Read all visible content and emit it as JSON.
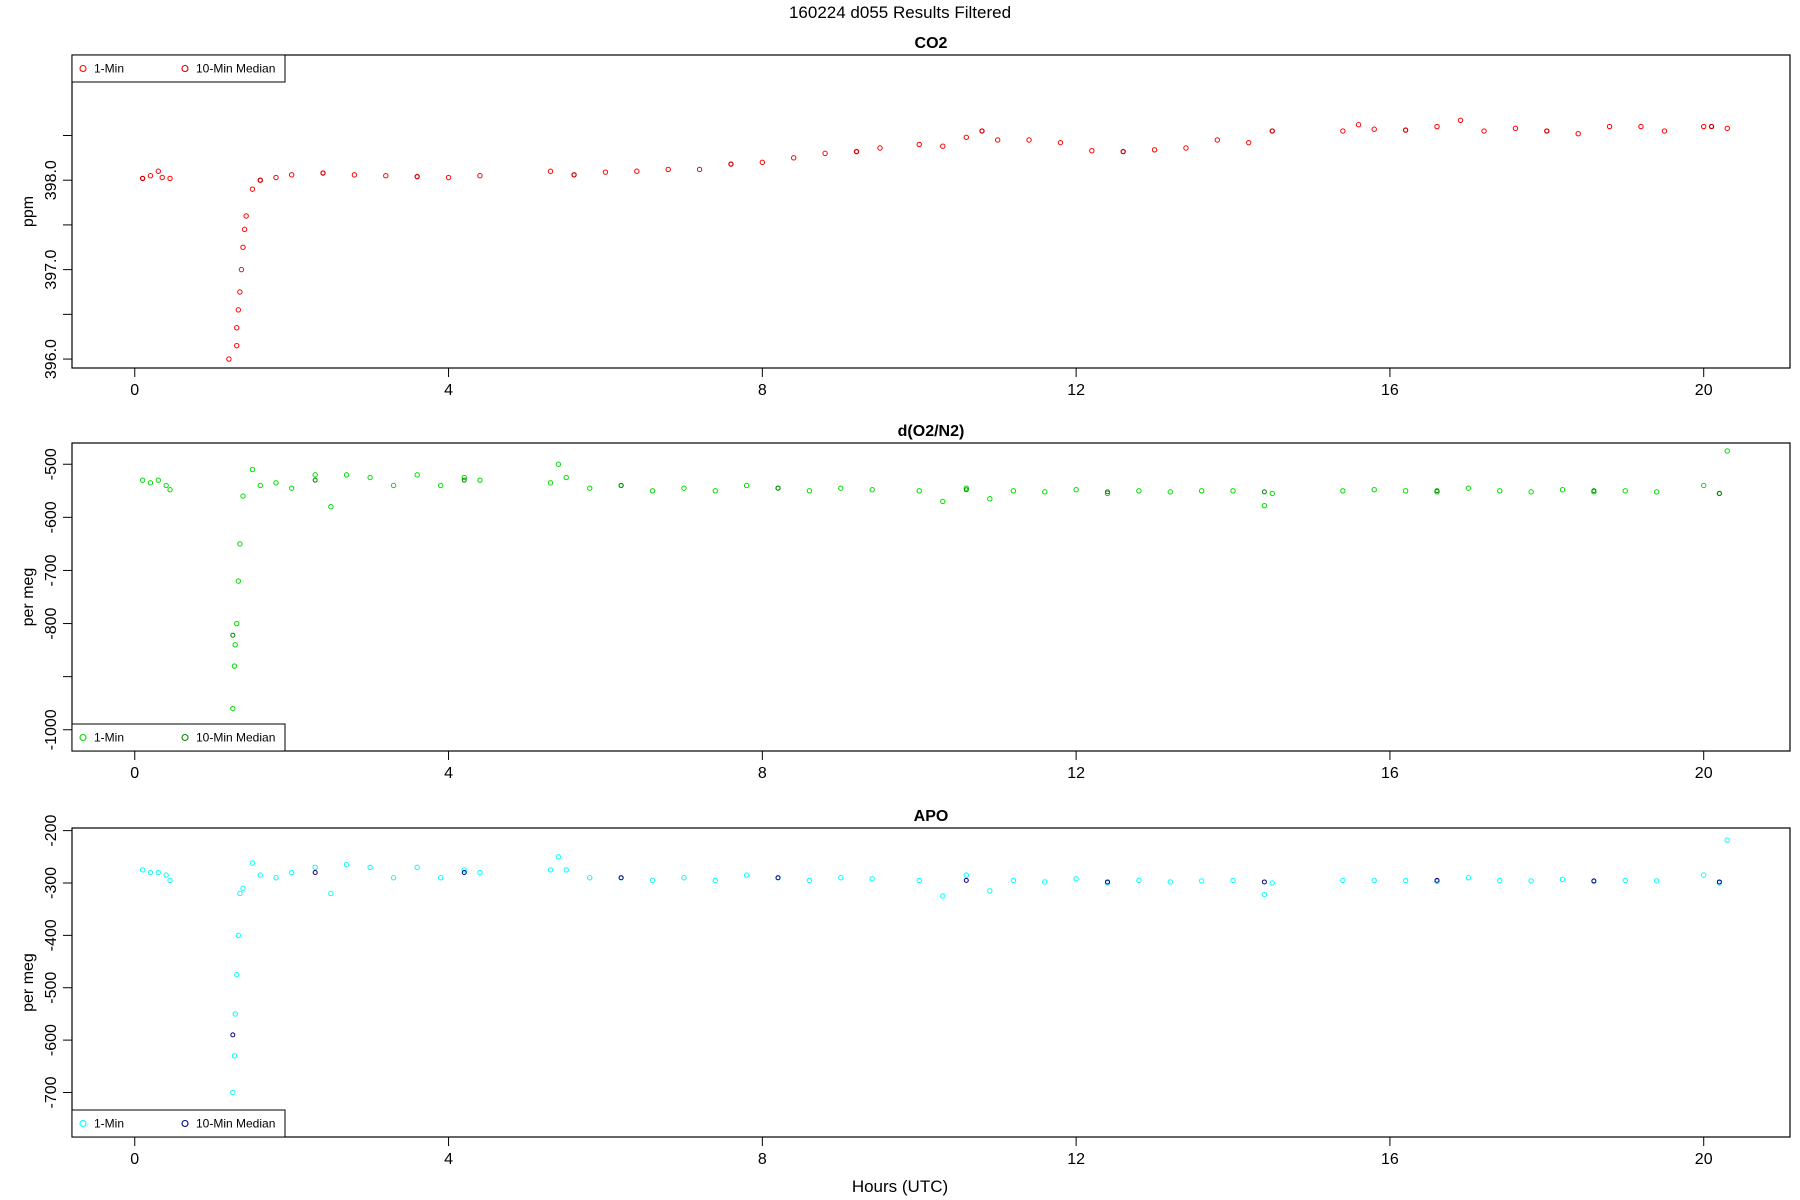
{
  "figure_title": "160224   d055   Results Filtered",
  "xlabel": "Hours (UTC)",
  "colors": {
    "co2": "#ff0000",
    "o2": "#00dd00",
    "apo": "#00ffff",
    "axis": "#000000"
  },
  "legend_placements": [
    "top-left",
    "bottom-left",
    "bottom-left"
  ],
  "chart_data": [
    {
      "type": "scatter",
      "title": "CO2",
      "ylabel": "ppm",
      "xlim": [
        -0.8,
        21.1
      ],
      "ylim": [
        395.9,
        399.4
      ],
      "xticks": [
        0,
        4,
        8,
        12,
        16,
        20
      ],
      "yticks": [
        396.0,
        396.5,
        397.0,
        397.5,
        398.0,
        398.5
      ],
      "ytick_labels": [
        "396.0",
        "",
        "397.0",
        "",
        "398.0",
        ""
      ],
      "legend": {
        "placement": "top-left",
        "entries": [
          "1-Min",
          "10-Min Median"
        ]
      },
      "series": [
        {
          "name": "1-Min",
          "color": "#ff0000",
          "x": [
            0.1,
            0.2,
            0.3,
            0.35,
            0.45,
            1.2,
            1.3,
            1.3,
            1.32,
            1.34,
            1.36,
            1.38,
            1.4,
            1.42,
            1.5,
            1.6,
            1.8,
            2.0,
            2.4,
            2.8,
            3.2,
            3.6,
            4.0,
            4.4,
            5.3,
            5.6,
            6.0,
            6.4,
            6.8,
            7.2,
            7.6,
            8.0,
            8.4,
            8.8,
            9.2,
            9.5,
            10.0,
            10.3,
            10.6,
            10.8,
            11.0,
            11.4,
            11.8,
            12.2,
            12.6,
            13.0,
            13.4,
            13.8,
            14.2,
            14.5,
            15.4,
            15.6,
            15.8,
            16.2,
            16.6,
            16.9,
            17.2,
            17.6,
            18.0,
            18.4,
            18.8,
            19.2,
            19.5,
            20.0,
            20.1,
            20.3
          ],
          "y": [
            398.02,
            398.05,
            398.1,
            398.03,
            398.02,
            396.0,
            396.15,
            396.35,
            396.55,
            396.75,
            397.0,
            397.25,
            397.45,
            397.6,
            397.9,
            398.0,
            398.03,
            398.06,
            398.08,
            398.06,
            398.05,
            398.04,
            398.03,
            398.05,
            398.1,
            398.06,
            398.09,
            398.1,
            398.12,
            398.12,
            398.18,
            398.2,
            398.25,
            398.3,
            398.32,
            398.36,
            398.4,
            398.38,
            398.48,
            398.55,
            398.45,
            398.45,
            398.42,
            398.33,
            398.32,
            398.34,
            398.36,
            398.45,
            398.42,
            398.55,
            398.55,
            398.62,
            398.57,
            398.56,
            398.6,
            398.67,
            398.55,
            398.58,
            398.55,
            398.52,
            398.6,
            398.6,
            398.55,
            398.6,
            398.6,
            398.58
          ]
        },
        {
          "name": "10-Min Median",
          "color": "#cc0000",
          "x": [
            0.1,
            1.6,
            2.4,
            3.6,
            5.6,
            7.6,
            9.2,
            10.8,
            12.6,
            14.5,
            16.2,
            18.0,
            20.1
          ],
          "y": [
            398.02,
            398.0,
            398.08,
            398.04,
            398.06,
            398.18,
            398.32,
            398.55,
            398.32,
            398.55,
            398.56,
            398.55,
            398.6
          ]
        }
      ]
    },
    {
      "type": "scatter",
      "title": "d(O2/N2)",
      "ylabel": "per meg",
      "xlim": [
        -0.8,
        21.1
      ],
      "ylim": [
        -1040,
        -460
      ],
      "xticks": [
        0,
        4,
        8,
        12,
        16,
        20
      ],
      "yticks": [
        -1000,
        -900,
        -800,
        -700,
        -600,
        -500
      ],
      "ytick_labels": [
        "-1000",
        "",
        "-800",
        "-700",
        "-600",
        "-500"
      ],
      "legend": {
        "placement": "bottom-left",
        "entries": [
          "1-Min",
          "10-Min Median"
        ]
      },
      "series": [
        {
          "name": "1-Min",
          "color": "#00dd00",
          "x": [
            0.1,
            0.2,
            0.3,
            0.4,
            0.45,
            1.25,
            1.27,
            1.28,
            1.3,
            1.32,
            1.34,
            1.38,
            1.5,
            1.6,
            1.8,
            2.0,
            2.3,
            2.5,
            2.7,
            3.0,
            3.3,
            3.6,
            3.9,
            4.2,
            4.4,
            5.3,
            5.4,
            5.5,
            5.8,
            6.2,
            6.6,
            7.0,
            7.4,
            7.8,
            8.2,
            8.6,
            9.0,
            9.4,
            10.0,
            10.3,
            10.6,
            10.9,
            11.2,
            11.6,
            12.0,
            12.4,
            12.8,
            13.2,
            13.6,
            14.0,
            14.4,
            14.5,
            15.4,
            15.8,
            16.2,
            16.6,
            17.0,
            17.4,
            17.8,
            18.2,
            18.6,
            19.0,
            19.4,
            20.0,
            20.2,
            20.3
          ],
          "y": [
            -530,
            -535,
            -530,
            -540,
            -548,
            -960,
            -880,
            -840,
            -800,
            -720,
            -650,
            -560,
            -510,
            -540,
            -535,
            -545,
            -520,
            -580,
            -520,
            -525,
            -540,
            -520,
            -540,
            -525,
            -530,
            -535,
            -500,
            -525,
            -545,
            -540,
            -550,
            -545,
            -550,
            -540,
            -545,
            -550,
            -545,
            -548,
            -550,
            -570,
            -545,
            -565,
            -550,
            -552,
            -548,
            -555,
            -550,
            -552,
            -550,
            -550,
            -578,
            -555,
            -550,
            -548,
            -550,
            -552,
            -545,
            -550,
            -552,
            -548,
            -552,
            -550,
            -552,
            -540,
            -555,
            -475
          ]
        },
        {
          "name": "10-Min Median",
          "color": "#008800",
          "x": [
            1.25,
            2.3,
            4.2,
            6.2,
            8.2,
            10.6,
            12.4,
            14.4,
            16.6,
            18.6,
            20.2
          ],
          "y": [
            -822,
            -530,
            -530,
            -540,
            -545,
            -548,
            -552,
            -552,
            -550,
            -550,
            -555
          ]
        }
      ]
    },
    {
      "type": "scatter",
      "title": "APO",
      "ylabel": "per meg",
      "xlim": [
        -0.8,
        21.1
      ],
      "ylim": [
        -785,
        -195
      ],
      "xticks": [
        0,
        4,
        8,
        12,
        16,
        20
      ],
      "yticks": [
        -700,
        -600,
        -500,
        -400,
        -300,
        -200
      ],
      "ytick_labels": [
        "-700",
        "-600",
        "-500",
        "-400",
        "-300",
        "-200"
      ],
      "legend": {
        "placement": "bottom-left",
        "entries": [
          "1-Min",
          "10-Min Median"
        ]
      },
      "series": [
        {
          "name": "1-Min",
          "color": "#00ffff",
          "x": [
            0.1,
            0.2,
            0.3,
            0.4,
            0.45,
            1.25,
            1.27,
            1.28,
            1.3,
            1.32,
            1.34,
            1.38,
            1.5,
            1.6,
            1.8,
            2.0,
            2.3,
            2.5,
            2.7,
            3.0,
            3.3,
            3.6,
            3.9,
            4.2,
            4.4,
            5.3,
            5.4,
            5.5,
            5.8,
            6.2,
            6.6,
            7.0,
            7.4,
            7.8,
            8.2,
            8.6,
            9.0,
            9.4,
            10.0,
            10.3,
            10.6,
            10.9,
            11.2,
            11.6,
            12.0,
            12.4,
            12.8,
            13.2,
            13.6,
            14.0,
            14.4,
            14.5,
            15.4,
            15.8,
            16.2,
            16.6,
            17.0,
            17.4,
            17.8,
            18.2,
            18.6,
            19.0,
            19.4,
            20.0,
            20.2,
            20.3
          ],
          "y": [
            -275,
            -280,
            -280,
            -285,
            -295,
            -700,
            -630,
            -550,
            -475,
            -400,
            -320,
            -310,
            -262,
            -285,
            -290,
            -280,
            -270,
            -320,
            -265,
            -270,
            -290,
            -270,
            -290,
            -275,
            -280,
            -275,
            -250,
            -275,
            -290,
            -290,
            -295,
            -290,
            -295,
            -285,
            -290,
            -295,
            -290,
            -292,
            -295,
            -325,
            -285,
            -315,
            -295,
            -298,
            -292,
            -300,
            -295,
            -298,
            -296,
            -295,
            -322,
            -300,
            -295,
            -295,
            -295,
            -297,
            -290,
            -295,
            -296,
            -293,
            -297,
            -295,
            -296,
            -285,
            -300,
            -218
          ]
        },
        {
          "name": "10-Min Median",
          "color": "#000088",
          "x": [
            1.25,
            2.3,
            4.2,
            6.2,
            8.2,
            10.6,
            12.4,
            14.4,
            16.6,
            18.6,
            20.2
          ],
          "y": [
            -590,
            -280,
            -280,
            -290,
            -290,
            -295,
            -298,
            -298,
            -295,
            -296,
            -298
          ]
        }
      ]
    }
  ]
}
